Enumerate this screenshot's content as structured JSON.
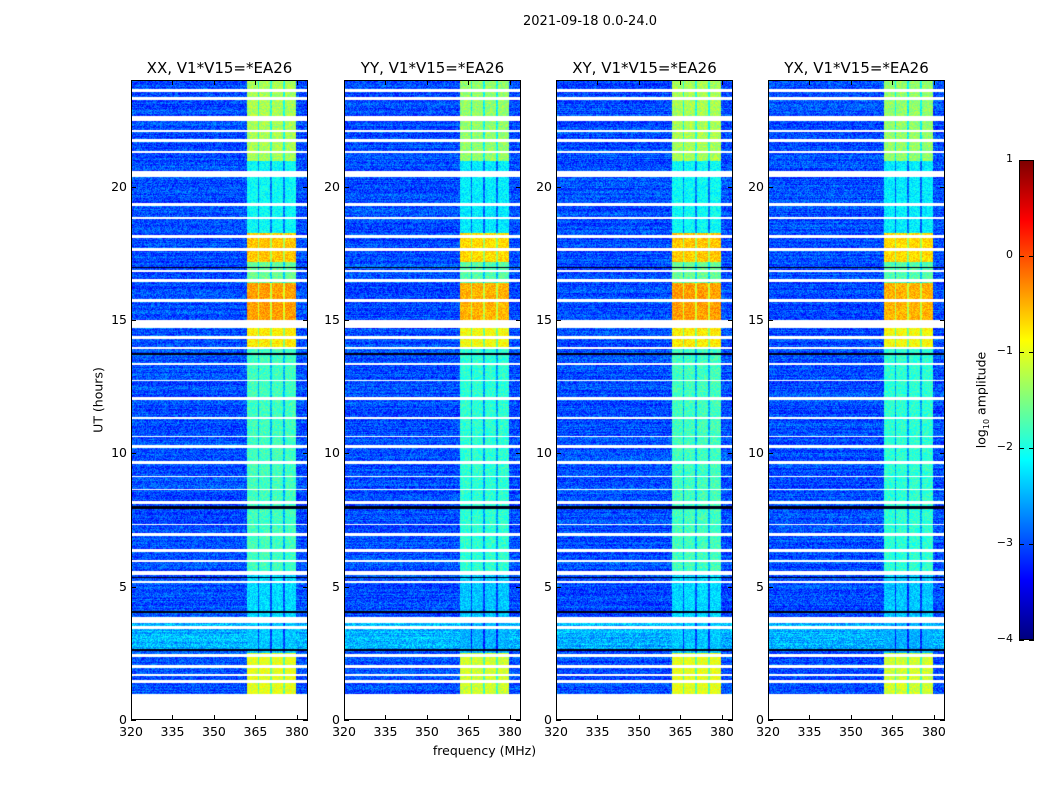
{
  "suptitle": "2021-09-18 0.0-24.0",
  "chart_data": {
    "type": "heatmap",
    "title": "2021-09-18 0.0-24.0",
    "xlabel": "frequency (MHz)",
    "ylabel": "UT (hours)",
    "xlim": [
      320,
      384
    ],
    "ylim": [
      0,
      24
    ],
    "xticks": [
      320,
      335,
      350,
      365,
      380
    ],
    "yticks": [
      0,
      5,
      10,
      15,
      20
    ],
    "panels": [
      {
        "title": "XX, V1*V15=*EA26",
        "seed": 11
      },
      {
        "title": "YY, V1*V15=*EA26",
        "seed": 23
      },
      {
        "title": "XY, V1*V15=*EA26",
        "seed": 37
      },
      {
        "title": "YX, V1*V15=*EA26",
        "seed": 51
      }
    ],
    "colorbar": {
      "label_main": "log",
      "label_sub": "10",
      "label_rest": " amplitude",
      "range": [
        -4,
        1
      ],
      "ticks": [
        "1",
        "0",
        "−1",
        "−2",
        "−3",
        "−4"
      ],
      "colormap": "jet"
    },
    "background_log_amplitude": -3.0,
    "rfi_band_mhz": [
      [
        362,
        366
      ],
      [
        366.6,
        370.6
      ],
      [
        371.2,
        375.2
      ],
      [
        375.8,
        380
      ]
    ],
    "band_log_amplitude_by_ut": [
      {
        "ut": [
          0.95,
          2.5
        ],
        "value": -1.0
      },
      {
        "ut": [
          2.5,
          3.6
        ],
        "value": -2.4
      },
      {
        "ut": [
          3.6,
          5.5
        ],
        "value": -2.3
      },
      {
        "ut": [
          5.5,
          14.0
        ],
        "value": -1.8
      },
      {
        "ut": [
          14.0,
          15.0
        ],
        "value": -0.8
      },
      {
        "ut": [
          15.0,
          16.4
        ],
        "value": -0.4
      },
      {
        "ut": [
          16.4,
          17.2
        ],
        "value": -1.6
      },
      {
        "ut": [
          17.2,
          18.3
        ],
        "value": -0.6
      },
      {
        "ut": [
          18.3,
          21.0
        ],
        "value": -2.1
      },
      {
        "ut": [
          21.0,
          24.0
        ],
        "value": -1.3
      }
    ],
    "flagged_ut_hours": [
      [
        0,
        0.95
      ],
      [
        1.35,
        1.45
      ],
      [
        1.6,
        1.7
      ],
      [
        1.9,
        2.05
      ],
      [
        2.35,
        2.45
      ],
      [
        3.4,
        3.5
      ],
      [
        3.6,
        3.85
      ],
      [
        5.1,
        5.2
      ],
      [
        5.4,
        5.55
      ],
      [
        5.9,
        6.0
      ],
      [
        6.3,
        6.4
      ],
      [
        6.9,
        7.0
      ],
      [
        7.3,
        7.35
      ],
      [
        8.1,
        8.2
      ],
      [
        8.6,
        8.65
      ],
      [
        9.1,
        9.15
      ],
      [
        9.6,
        9.7
      ],
      [
        10.2,
        10.3
      ],
      [
        10.6,
        10.65
      ],
      [
        11.3,
        11.35
      ],
      [
        12.0,
        12.1
      ],
      [
        12.7,
        12.75
      ],
      [
        13.3,
        13.4
      ],
      [
        13.9,
        14.0
      ],
      [
        14.3,
        14.4
      ],
      [
        14.7,
        15.0
      ],
      [
        15.7,
        15.8
      ],
      [
        16.45,
        16.55
      ],
      [
        16.8,
        16.9
      ],
      [
        17.6,
        17.7
      ],
      [
        18.1,
        18.2
      ],
      [
        18.8,
        18.9
      ],
      [
        19.3,
        19.4
      ],
      [
        20.4,
        20.6
      ],
      [
        21.3,
        21.35
      ],
      [
        21.7,
        21.8
      ],
      [
        22.1,
        22.15
      ],
      [
        22.5,
        22.7
      ],
      [
        23.3,
        23.4
      ],
      [
        23.6,
        23.7
      ]
    ],
    "dark_ut_hours": [
      [
        2.55,
        2.62
      ],
      [
        4.0,
        4.05
      ],
      [
        5.3,
        5.36
      ],
      [
        7.9,
        8.0
      ],
      [
        13.7,
        13.76
      ],
      [
        16.95,
        17.02
      ]
    ]
  }
}
